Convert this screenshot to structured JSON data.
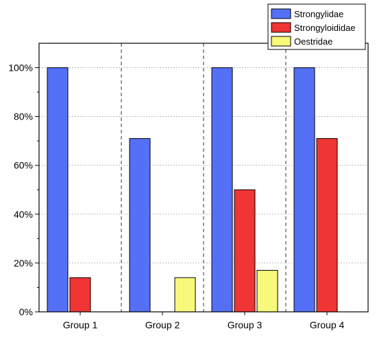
{
  "chart_data": {
    "type": "bar",
    "title": "",
    "xlabel": "",
    "ylabel": "",
    "categories": [
      "Group 1",
      "Group 2",
      "Group 3",
      "Group 4"
    ],
    "series": [
      {
        "name": "Strongylidae",
        "color": "#5470f6",
        "values": [
          100,
          71,
          100,
          100
        ]
      },
      {
        "name": "Strongyloididae",
        "color": "#f03535",
        "values": [
          14,
          0,
          50,
          71
        ]
      },
      {
        "name": "Oestridae",
        "color": "#f8f87a",
        "values": [
          0,
          14,
          17,
          0
        ]
      }
    ],
    "ylim": [
      0,
      110
    ],
    "yticks": [
      {
        "value": 0,
        "label": "0%"
      },
      {
        "value": 20,
        "label": "20%"
      },
      {
        "value": 40,
        "label": "40%"
      },
      {
        "value": 60,
        "label": "60%"
      },
      {
        "value": 80,
        "label": "80%"
      },
      {
        "value": 100,
        "label": "100%"
      }
    ],
    "grid": "horizontal-dotted",
    "group_separators": "dashed-vertical",
    "legend_position": "top-right"
  }
}
